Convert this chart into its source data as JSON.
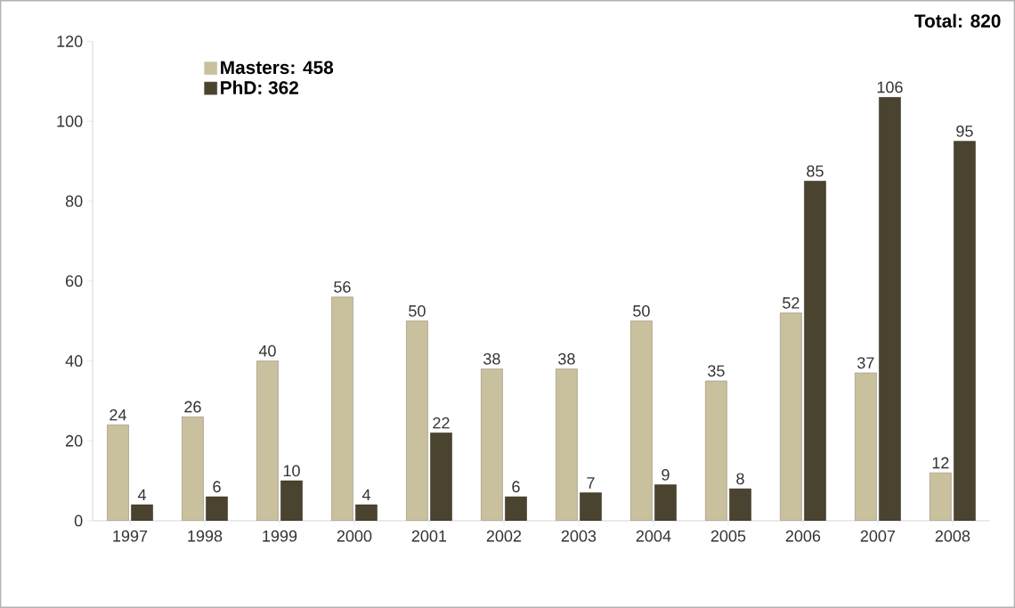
{
  "chart_data": {
    "type": "bar",
    "categories": [
      "1997",
      "1998",
      "1999",
      "2000",
      "2001",
      "2002",
      "2003",
      "2004",
      "2005",
      "2006",
      "2007",
      "2008"
    ],
    "series": [
      {
        "name": "Masters: 458",
        "color": "#c9c09e",
        "values": [
          24,
          26,
          40,
          56,
          50,
          38,
          38,
          50,
          35,
          52,
          37,
          12
        ]
      },
      {
        "name": "PhD: 362",
        "color": "#4a4330",
        "values": [
          4,
          6,
          10,
          4,
          22,
          6,
          7,
          9,
          8,
          85,
          106,
          95
        ]
      }
    ],
    "ylim": [
      0,
      120
    ],
    "yticks": [
      0,
      20,
      40,
      60,
      80,
      100,
      120
    ],
    "data_labels": true,
    "legend": "top left",
    "annotations": [
      "Total: 820"
    ]
  }
}
